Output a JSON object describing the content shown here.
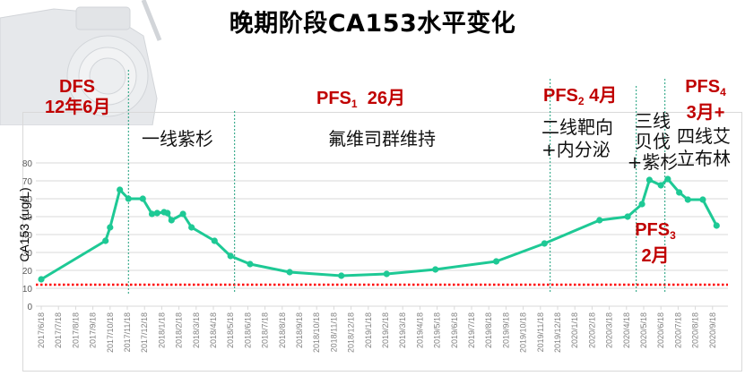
{
  "title": "晚期阶段CA153水平变化",
  "chart_data": {
    "type": "line",
    "title": "晚期阶段CA153水平变化",
    "xlabel": "",
    "ylabel": "CA153 (ug/L)",
    "ylim": [
      0,
      80
    ],
    "yticks": [
      0,
      10,
      20,
      30,
      40,
      50,
      60,
      70,
      80
    ],
    "grid": true,
    "x_tick_labels": [
      "2017/6/18",
      "2017/7/18",
      "2017/8/18",
      "2017/9/18",
      "2017/10/18",
      "2017/11/18",
      "2017/12/18",
      "2018/1/18",
      "2018/2/18",
      "2018/3/18",
      "2018/4/18",
      "2018/5/18",
      "2018/6/18",
      "2018/7/18",
      "2018/8/18",
      "2018/9/18",
      "2018/10/18",
      "2018/11/18",
      "2018/12/18",
      "2019/1/18",
      "2019/2/18",
      "2019/3/18",
      "2019/4/18",
      "2019/5/18",
      "2019/6/18",
      "2019/7/18",
      "2019/8/18",
      "2019/9/18",
      "2019/10/18",
      "2019/11/18",
      "2019/12/18",
      "2020/1/18",
      "2020/2/18",
      "2020/3/18",
      "2020/4/18",
      "2020/5/18",
      "2020/6/18",
      "2020/7/18",
      "2020/8/18",
      "2020/9/18"
    ],
    "series": [
      {
        "name": "CA153",
        "color": "#1ec995",
        "points": [
          {
            "x": "2017/6/18",
            "y": 15
          },
          {
            "x": "2017/10/10",
            "y": 36.5
          },
          {
            "x": "2017/10/18",
            "y": 44
          },
          {
            "x": "2017/11/5",
            "y": 65
          },
          {
            "x": "2017/11/20",
            "y": 60
          },
          {
            "x": "2017/12/15",
            "y": 60
          },
          {
            "x": "2018/1/1",
            "y": 51.5
          },
          {
            "x": "2018/1/10",
            "y": 52
          },
          {
            "x": "2018/1/22",
            "y": 52.5
          },
          {
            "x": "2018/1/28",
            "y": 52
          },
          {
            "x": "2018/2/5",
            "y": 48
          },
          {
            "x": "2018/2/25",
            "y": 51.5
          },
          {
            "x": "2018/3/10",
            "y": 44
          },
          {
            "x": "2018/4/20",
            "y": 36.5
          },
          {
            "x": "2018/5/18",
            "y": 28
          },
          {
            "x": "2018/6/22",
            "y": 23.5
          },
          {
            "x": "2018/9/1",
            "y": 19
          },
          {
            "x": "2018/12/1",
            "y": 17
          },
          {
            "x": "2019/2/20",
            "y": 18
          },
          {
            "x": "2019/5/15",
            "y": 20.5
          },
          {
            "x": "2019/9/1",
            "y": 25
          },
          {
            "x": "2019/11/25",
            "y": 35
          },
          {
            "x": "2020/3/1",
            "y": 48
          },
          {
            "x": "2020/4/20",
            "y": 50
          },
          {
            "x": "2020/5/15",
            "y": 57
          },
          {
            "x": "2020/5/28",
            "y": 70.5
          },
          {
            "x": "2020/6/18",
            "y": 67.5
          },
          {
            "x": "2020/6/30",
            "y": 71
          },
          {
            "x": "2020/7/20",
            "y": 63.5
          },
          {
            "x": "2020/8/5",
            "y": 59.5
          },
          {
            "x": "2020/9/1",
            "y": 59.5
          },
          {
            "x": "2020/9/25",
            "y": 45
          }
        ]
      }
    ],
    "reference_line": {
      "y": 12,
      "color": "#ff0000",
      "style": "dotted"
    },
    "phase_dividers": [
      "2017/11/20",
      "2018/5/25",
      "2019/12/5",
      "2020/5/5",
      "2020/6/25"
    ],
    "annotations": [
      {
        "text": "DFS 12年6月",
        "color": "#c00000"
      },
      {
        "text": "PFS1 26月",
        "color": "#c00000"
      },
      {
        "text": "PFS2 4月",
        "color": "#c00000"
      },
      {
        "text": "PFS3 2月",
        "color": "#c00000"
      },
      {
        "text": "PFS4 3月+",
        "color": "#c00000"
      },
      {
        "text": "一线紫杉",
        "color": "#000000"
      },
      {
        "text": "氟维司群维持",
        "color": "#000000"
      },
      {
        "text": "二线靶向+内分泌",
        "color": "#000000"
      },
      {
        "text": "三线贝伐+紫杉",
        "color": "#000000"
      },
      {
        "text": "四线艾立布林",
        "color": "#000000"
      }
    ]
  },
  "labels": {
    "ylabel": "CA153 (ug/L)",
    "dfs_line1": "DFS",
    "dfs_line2": "12年6月",
    "pfs1_pre": "PFS",
    "pfs1_sub": "1",
    "pfs1_post": "  26月",
    "pfs2_pre": "PFS",
    "pfs2_sub": "2",
    "pfs2_post": " 4月",
    "pfs3_pre": "PFS",
    "pfs3_sub": "3",
    "pfs3_line2": "2月",
    "pfs4_pre": "PFS",
    "pfs4_sub": "4",
    "pfs4_line2": "3月+",
    "line1": "一线紫杉",
    "maint": "氟维司群维持",
    "line2_a": "二线靶向",
    "line2_b": "+内分泌",
    "line3_a": "三线",
    "line3_b": "贝伐",
    "line3_c": "+紫杉",
    "line4_a": "四线艾",
    "line4_b": "立布林"
  },
  "colors": {
    "series": "#1ec995",
    "reference": "#ff0000",
    "annotation_red": "#c00000",
    "divider": "#1a9e7a",
    "grid": "#d9d9d9"
  }
}
